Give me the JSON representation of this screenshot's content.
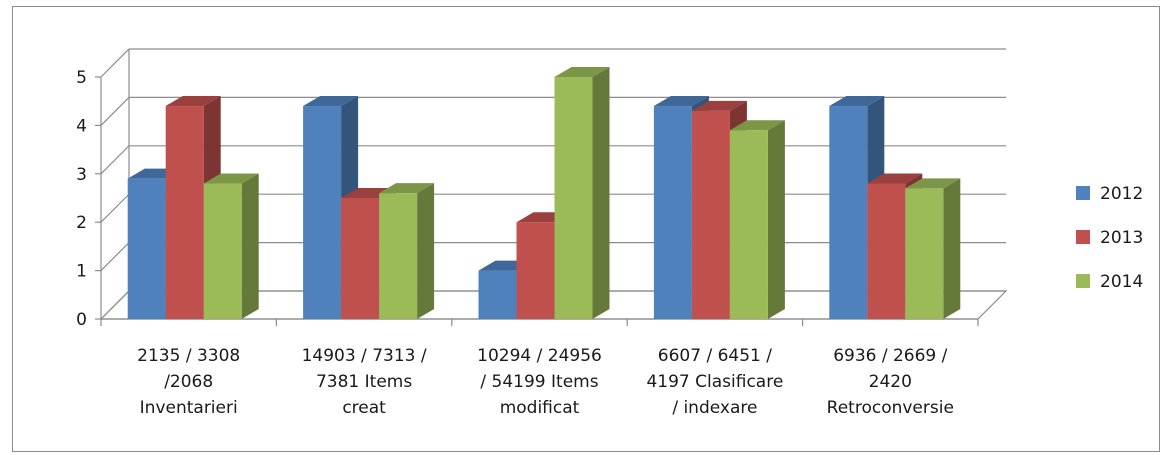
{
  "chart_data": {
    "type": "bar",
    "style": "3d-clustered-column",
    "categories": [
      [
        "2135 / 3308",
        "/2068",
        "Inventarieri"
      ],
      [
        "14903 / 7313 /",
        "7381 Items",
        "creat"
      ],
      [
        "10294 / 24956",
        "/ 54199 Items",
        "modificat"
      ],
      [
        "6607 / 6451 /",
        "4197 Clasificare",
        "/ indexare"
      ],
      [
        "6936 / 2669  /",
        "2420",
        "Retroconversie"
      ]
    ],
    "series": [
      {
        "name": "2012",
        "color": "#4f81bd",
        "values": [
          2.9,
          4.4,
          1.0,
          4.4,
          4.4
        ]
      },
      {
        "name": "2013",
        "color": "#c0504d",
        "values": [
          4.4,
          2.5,
          2.0,
          4.3,
          2.8
        ]
      },
      {
        "name": "2014",
        "color": "#9bbb59",
        "values": [
          2.8,
          2.6,
          5.0,
          3.9,
          2.7
        ]
      }
    ],
    "yticks": [
      "0",
      "1",
      "2",
      "3",
      "4",
      "5"
    ],
    "ylim": [
      0,
      5
    ],
    "grid": true,
    "legend": "right"
  }
}
